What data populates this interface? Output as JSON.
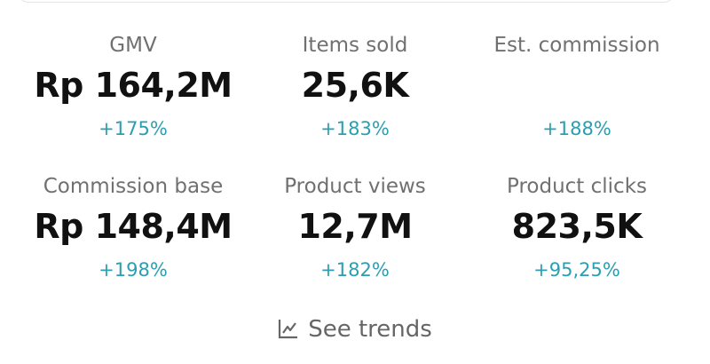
{
  "metrics": [
    {
      "label": "GMV",
      "value": "Rp 164,2M",
      "change": "+175%"
    },
    {
      "label": "Items sold",
      "value": "25,6K",
      "change": "+183%"
    },
    {
      "label": "Est. commission",
      "change": "+188%"
    },
    {
      "label": "Commission base",
      "value": "Rp 148,4M",
      "change": "+198%"
    },
    {
      "label": "Product views",
      "value": "12,7M",
      "change": "+182%"
    },
    {
      "label": "Product clicks",
      "value": "823,5K",
      "change": "+95,25%"
    }
  ],
  "link": {
    "label": "See trends"
  }
}
